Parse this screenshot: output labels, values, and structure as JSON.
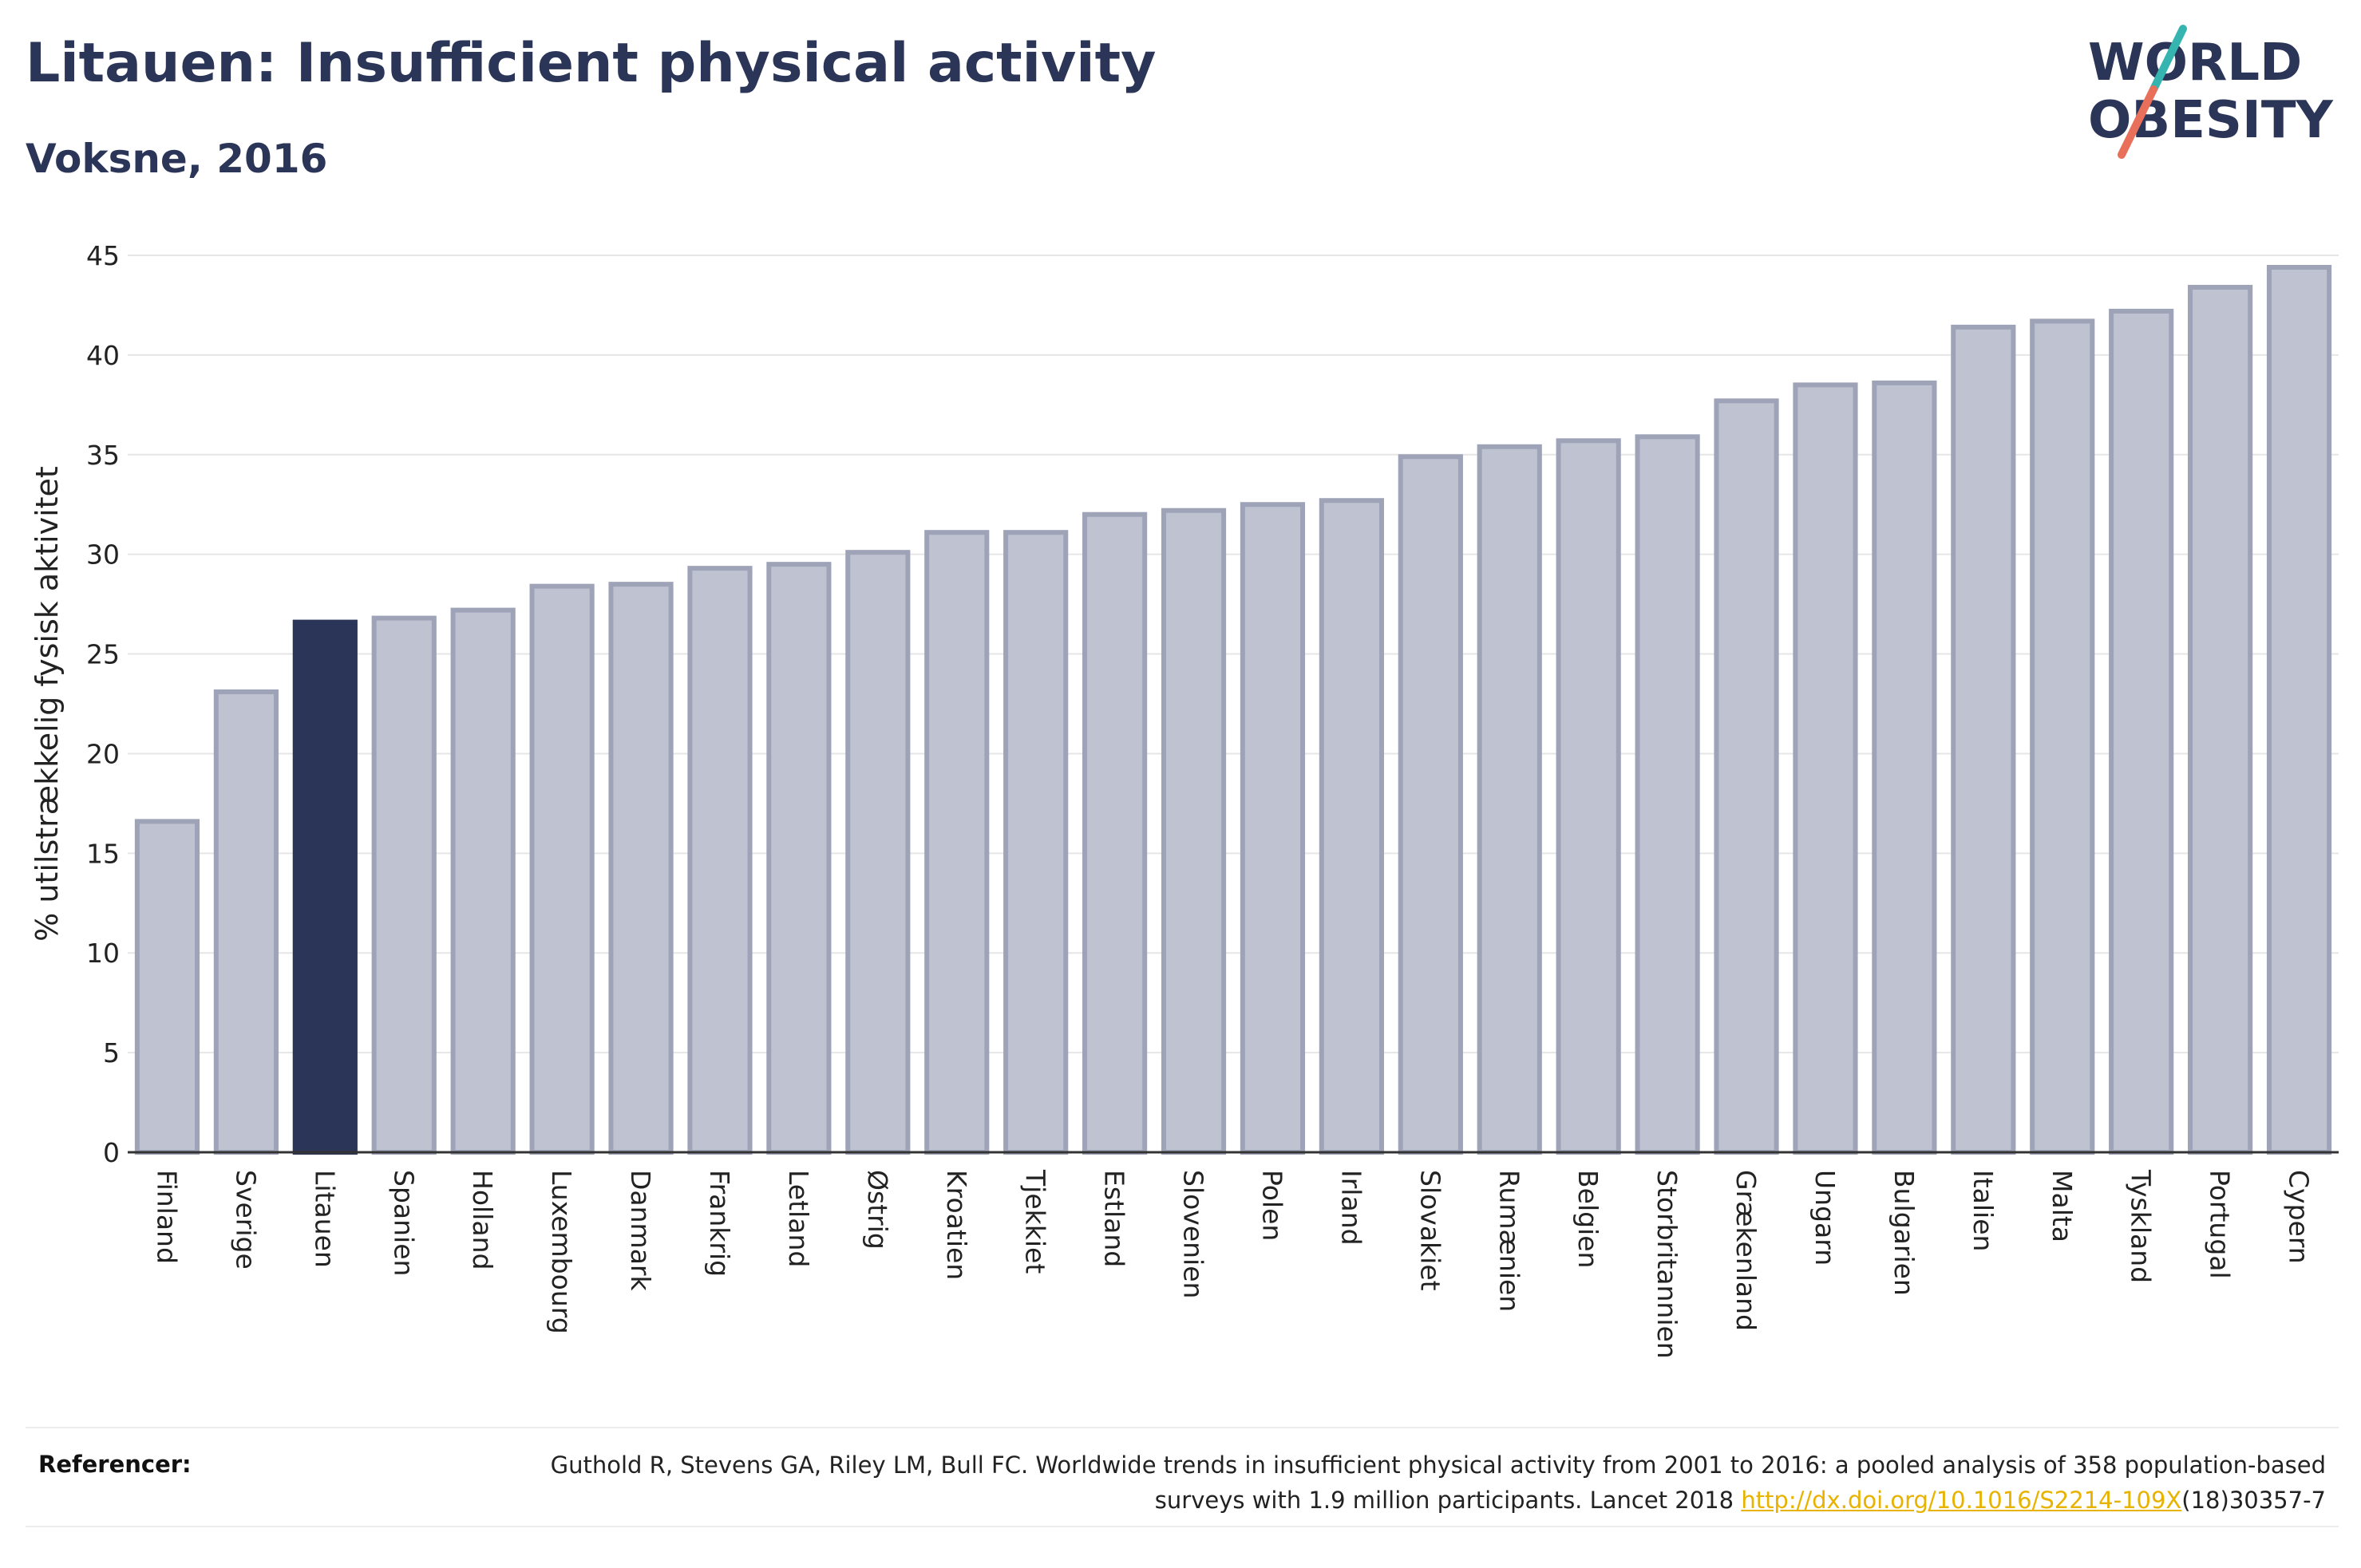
{
  "header": {
    "title": "Litauen: Insufficient physical activity",
    "subtitle": "Voksne, 2016"
  },
  "logo": {
    "line1": "WORLD",
    "line2": "OBESITY",
    "colors": {
      "text": "#2a3558",
      "slash_top": "#36b5b0",
      "slash_bottom": "#e8705a"
    }
  },
  "colors": {
    "bar": "#bfc2d0",
    "bar_stroke": "#9ea3b8",
    "highlight": "#2a3558",
    "grid": "#e6e6e6",
    "axis": "#333333"
  },
  "chart_data": {
    "type": "bar",
    "ylabel": "% utilstrækkelig fysisk aktivitet",
    "ylim": [
      0,
      45
    ],
    "yticks": [
      0,
      5,
      10,
      15,
      20,
      25,
      30,
      35,
      40,
      45
    ],
    "grid": true,
    "highlight": "Litauen",
    "categories": [
      "Finland",
      "Sverige",
      "Litauen",
      "Spanien",
      "Holland",
      "Luxembourg",
      "Danmark",
      "Frankrig",
      "Letland",
      "Østrig",
      "Kroatien",
      "Tjekkiet",
      "Estland",
      "Slovenien",
      "Polen",
      "Irland",
      "Slovakiet",
      "Rumænien",
      "Belgien",
      "Storbritannien",
      "Grækenland",
      "Ungarn",
      "Bulgarien",
      "Italien",
      "Malta",
      "Tyskland",
      "Portugal",
      "Cypern"
    ],
    "values": [
      16.6,
      23.1,
      26.6,
      26.8,
      27.2,
      28.4,
      28.5,
      29.3,
      29.5,
      30.1,
      31.1,
      31.1,
      32.0,
      32.2,
      32.5,
      32.7,
      34.9,
      35.4,
      35.7,
      35.9,
      37.7,
      38.5,
      38.6,
      41.4,
      41.7,
      42.2,
      43.4,
      44.4
    ]
  },
  "references": {
    "label": "Referencer:",
    "text_before": "Guthold R, Stevens GA, Riley LM, Bull FC. Worldwide trends in insufficient physical activity from 2001 to 2016: a pooled analysis of 358 population-based surveys with 1.9 million participants. Lancet 2018 ",
    "link_text": "http://dx.doi.org/10.1016/S2214-109X",
    "text_after": "(18)30357-7"
  }
}
